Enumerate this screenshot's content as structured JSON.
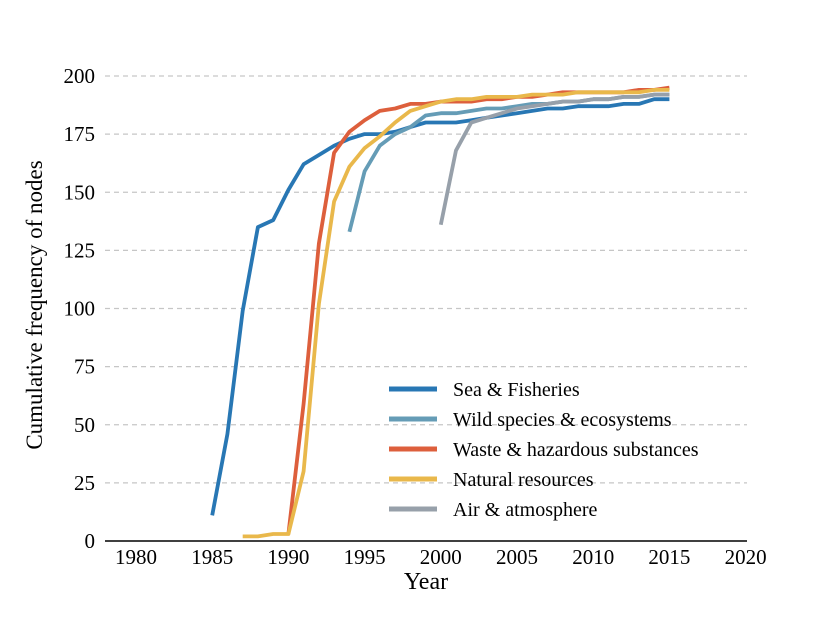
{
  "chart_data": {
    "type": "line",
    "title": "",
    "xlabel": "Year",
    "ylabel": "Cumulative frequency of nodes",
    "x_ticks": [
      1980,
      1985,
      1990,
      1995,
      2000,
      2005,
      2010,
      2015,
      2020
    ],
    "y_ticks": [
      0,
      25,
      50,
      75,
      100,
      125,
      150,
      175,
      200
    ],
    "xlim": [
      1978,
      2020.3
    ],
    "ylim": [
      0,
      213
    ],
    "grid": "horizontal-dashed",
    "legend_position": "lower-right-inside",
    "colors": {
      "axis": "#000000",
      "gridline": "#c6c6c6",
      "background": "#ffffff"
    },
    "series": [
      {
        "name": "Sea & Fisheries",
        "color": "#2877B4",
        "x": [
          1985,
          1986,
          1987,
          1988,
          1989,
          1990,
          1991,
          1992,
          1993,
          1994,
          1995,
          1996,
          1997,
          1998,
          1999,
          2000,
          2001,
          2002,
          2003,
          2004,
          2005,
          2006,
          2007,
          2008,
          2009,
          2010,
          2011,
          2012,
          2013,
          2014,
          2015
        ],
        "values": [
          11,
          46,
          99,
          135,
          138,
          151,
          162,
          166,
          170,
          173,
          175,
          175,
          176,
          178,
          180,
          180,
          180,
          181,
          182,
          183,
          184,
          185,
          186,
          186,
          187,
          187,
          187,
          188,
          188,
          190,
          190
        ]
      },
      {
        "name": "Wild species & ecosystems",
        "color": "#659CB6",
        "x": [
          1994,
          1995,
          1996,
          1997,
          1998,
          1999,
          2000,
          2001,
          2002,
          2003,
          2004,
          2005,
          2006,
          2007,
          2008,
          2009,
          2010,
          2011,
          2012,
          2013,
          2014,
          2015
        ],
        "values": [
          133,
          159,
          170,
          175,
          178,
          183,
          184,
          184,
          185,
          186,
          186,
          187,
          188,
          188,
          189,
          189,
          190,
          190,
          191,
          191,
          192,
          192
        ]
      },
      {
        "name": "Waste & hazardous substances",
        "color": "#DD5F3C",
        "x": [
          1990,
          1991,
          1992,
          1993,
          1994,
          1995,
          1996,
          1997,
          1998,
          1999,
          2000,
          2001,
          2002,
          2003,
          2004,
          2005,
          2006,
          2007,
          2008,
          2009,
          2010,
          2011,
          2012,
          2013,
          2014,
          2015
        ],
        "values": [
          3,
          59,
          128,
          167,
          176,
          181,
          185,
          186,
          188,
          188,
          189,
          189,
          189,
          190,
          190,
          191,
          191,
          192,
          193,
          193,
          193,
          193,
          193,
          194,
          194,
          195
        ]
      },
      {
        "name": "Natural resources",
        "color": "#E9B84B",
        "x": [
          1987,
          1988,
          1989,
          1990,
          1991,
          1992,
          1993,
          1994,
          1995,
          1996,
          1997,
          1998,
          1999,
          2000,
          2001,
          2002,
          2003,
          2004,
          2005,
          2006,
          2007,
          2008,
          2009,
          2010,
          2011,
          2012,
          2013,
          2014,
          2015
        ],
        "values": [
          2,
          2,
          3,
          3,
          30,
          102,
          146,
          161,
          169,
          174,
          180,
          185,
          187,
          189,
          190,
          190,
          191,
          191,
          191,
          192,
          192,
          192,
          193,
          193,
          193,
          193,
          193,
          194,
          194
        ]
      },
      {
        "name": "Air & atmosphere",
        "color": "#97A0AA",
        "x": [
          2000,
          2001,
          2002,
          2003,
          2004,
          2005,
          2006,
          2007,
          2008,
          2009,
          2010,
          2011,
          2012,
          2013,
          2014,
          2015
        ],
        "values": [
          136,
          168,
          180,
          182,
          184,
          186,
          187,
          188,
          189,
          189,
          190,
          190,
          191,
          191,
          192,
          192
        ]
      }
    ]
  }
}
